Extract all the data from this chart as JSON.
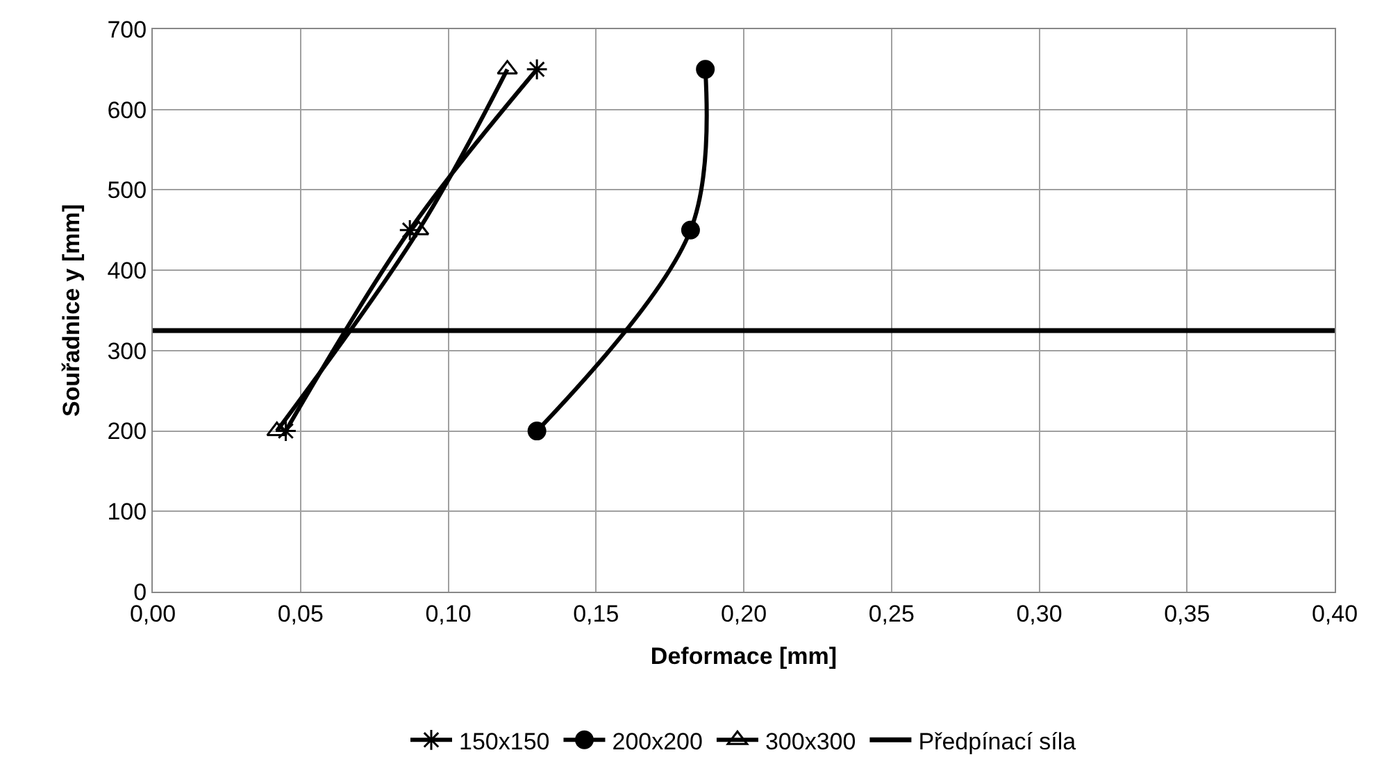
{
  "chart_data": {
    "type": "line",
    "xlabel": "Deformace [mm]",
    "ylabel": "Souřadnice y [mm]",
    "xlim": [
      0,
      0.4
    ],
    "xticks": [
      {
        "value": 0,
        "label": "0,00"
      },
      {
        "value": 0.05,
        "label": "0,05"
      },
      {
        "value": 0.1,
        "label": "0,10"
      },
      {
        "value": 0.15,
        "label": "0,15"
      },
      {
        "value": 0.2,
        "label": "0,20"
      },
      {
        "value": 0.25,
        "label": "0,25"
      },
      {
        "value": 0.3,
        "label": "0,30"
      },
      {
        "value": 0.35,
        "label": "0,35"
      },
      {
        "value": 0.4,
        "label": "0,40"
      }
    ],
    "ylim": [
      0,
      700
    ],
    "yticks": [
      0,
      100,
      200,
      300,
      400,
      500,
      600,
      700
    ],
    "grid": true,
    "legend": "bottom",
    "series": [
      {
        "name": "150x150",
        "color": "#000000",
        "marker": "cross",
        "x": [
          0.045,
          0.087,
          0.13
        ],
        "values": [
          200,
          450,
          650
        ]
      },
      {
        "name": "200x200",
        "color": "#000000",
        "marker": "circle",
        "x": [
          0.13,
          0.182,
          0.187
        ],
        "values": [
          200,
          450,
          650
        ]
      },
      {
        "name": "300x300",
        "color": "#000000",
        "marker": "triangle",
        "x": [
          0.042,
          0.09,
          0.12
        ],
        "values": [
          200,
          450,
          650
        ]
      }
    ],
    "ref_lines": [
      {
        "axis": "y",
        "value": 325,
        "label": "Předpínací síla",
        "color": "#000000"
      }
    ]
  }
}
